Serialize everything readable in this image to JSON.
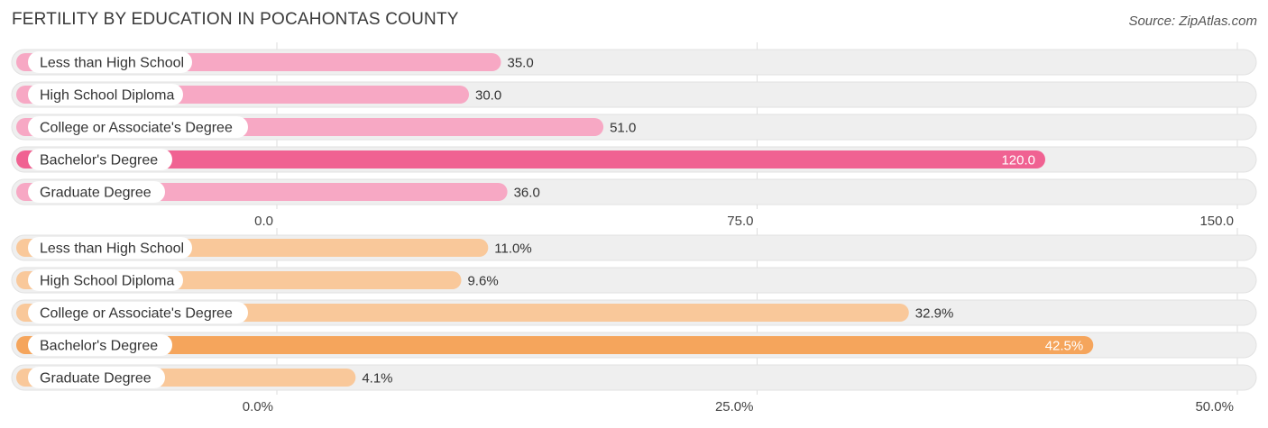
{
  "title": "FERTILITY BY EDUCATION IN POCAHONTAS COUNTY",
  "source": "Source: ZipAtlas.com",
  "colors": {
    "top_bar": "#f7a8c4",
    "top_bar_highlight": "#f06292",
    "bottom_bar": "#f9c89a",
    "bottom_bar_highlight": "#f5a55c",
    "track": "#efefef",
    "grid": "#dddddd"
  },
  "chart_data": [
    {
      "type": "bar",
      "orientation": "horizontal",
      "categories": [
        "Less than High School",
        "High School Diploma",
        "College or Associate's Degree",
        "Bachelor's Degree",
        "Graduate Degree"
      ],
      "values": [
        35.0,
        30.0,
        51.0,
        120.0,
        36.0
      ],
      "value_labels": [
        "35.0",
        "30.0",
        "51.0",
        "120.0",
        "36.0"
      ],
      "highlight_index": 3,
      "xlim": [
        0,
        150
      ],
      "ticks": [
        0,
        75,
        150
      ],
      "tick_labels": [
        "0.0",
        "75.0",
        "150.0"
      ]
    },
    {
      "type": "bar",
      "orientation": "horizontal",
      "categories": [
        "Less than High School",
        "High School Diploma",
        "College or Associate's Degree",
        "Bachelor's Degree",
        "Graduate Degree"
      ],
      "values": [
        11.0,
        9.6,
        32.9,
        42.5,
        4.1
      ],
      "value_labels": [
        "11.0%",
        "9.6%",
        "32.9%",
        "42.5%",
        "4.1%"
      ],
      "highlight_index": 3,
      "xlim": [
        0,
        50
      ],
      "ticks": [
        0,
        25,
        50
      ],
      "tick_labels": [
        "0.0%",
        "25.0%",
        "50.0%"
      ]
    }
  ]
}
